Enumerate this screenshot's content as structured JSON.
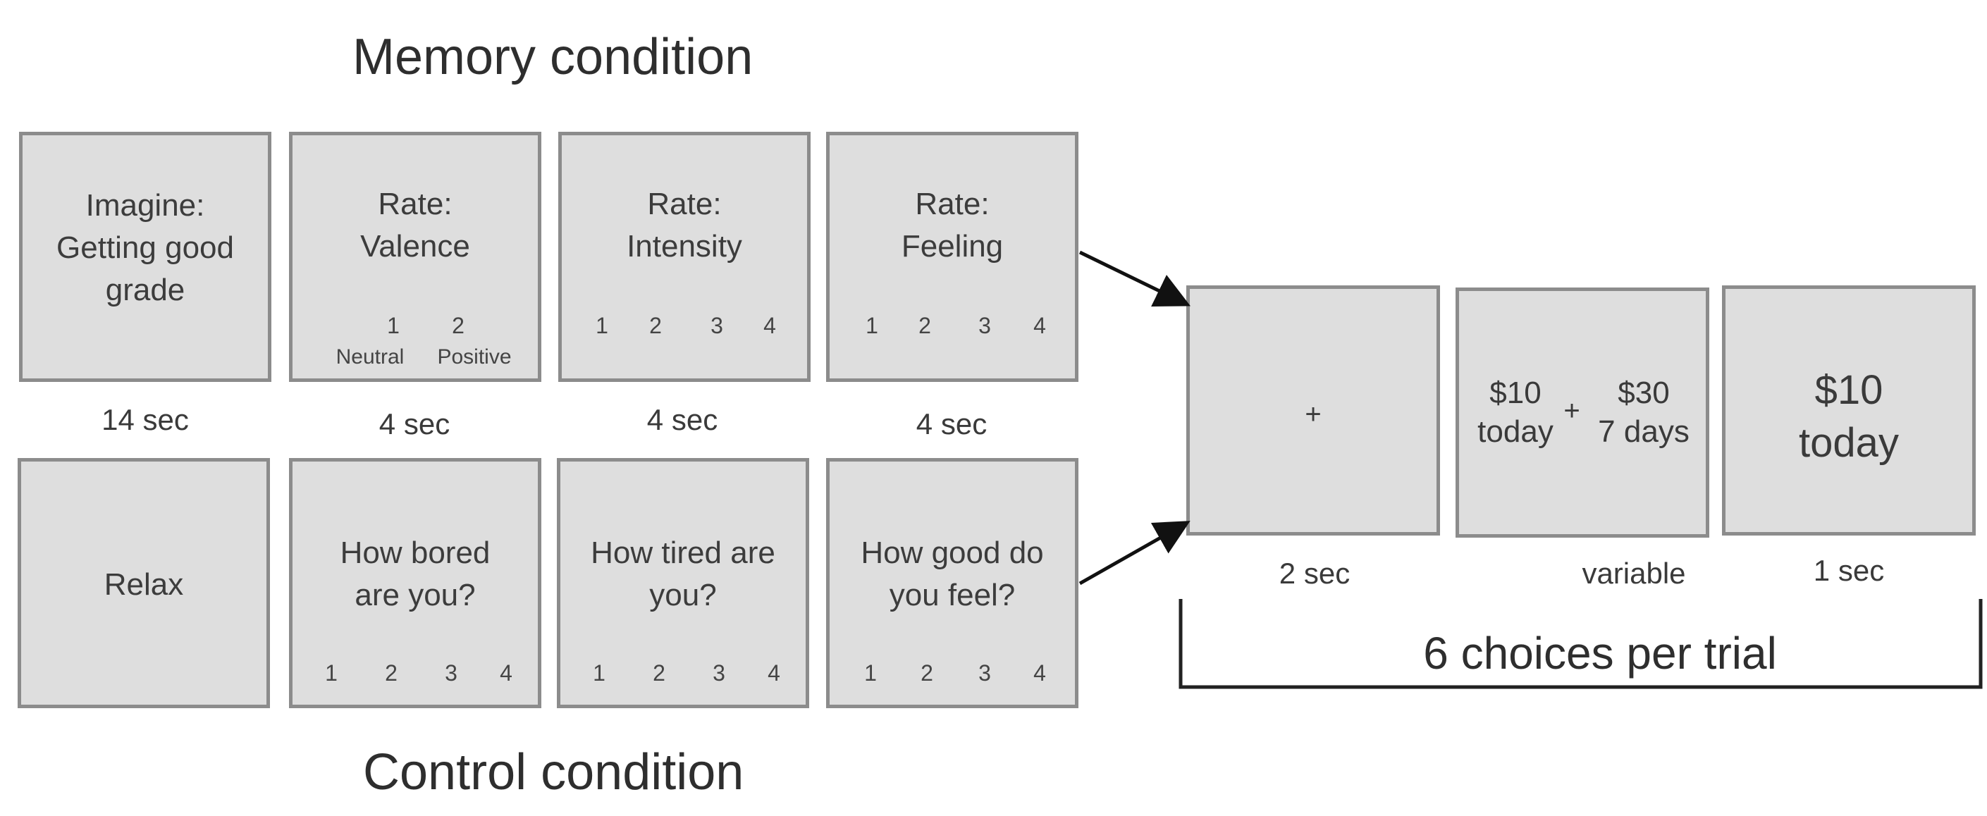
{
  "memory_title": "Memory condition",
  "control_title": "Control condition",
  "memory": {
    "imagine": [
      "Imagine:",
      "Getting good",
      "grade"
    ],
    "valence": {
      "text": [
        "Rate:",
        "Valence"
      ],
      "nums": [
        "1",
        "2"
      ],
      "labels": [
        "Neutral",
        "Positive"
      ]
    },
    "intensity": {
      "text": [
        "Rate:",
        "Intensity"
      ],
      "nums": [
        "1",
        "2",
        "3",
        "4"
      ]
    },
    "feeling": {
      "text": [
        "Rate:",
        "Feeling"
      ],
      "nums": [
        "1",
        "2",
        "3",
        "4"
      ]
    }
  },
  "durations": [
    "14 sec",
    "4 sec",
    "4 sec",
    "4 sec"
  ],
  "control": {
    "relax": "Relax",
    "bored": {
      "text": [
        "How bored",
        "are you?"
      ],
      "nums": [
        "1",
        "2",
        "3",
        "4"
      ]
    },
    "tired": {
      "text": [
        "How tired are",
        "you?"
      ],
      "nums": [
        "1",
        "2",
        "3",
        "4"
      ]
    },
    "good": {
      "text": [
        "How good do",
        "you feel?"
      ],
      "nums": [
        "1",
        "2",
        "3",
        "4"
      ]
    }
  },
  "choice": {
    "fixation": "+",
    "left_amount": "$10",
    "left_delay": "today",
    "plus": "+",
    "right_amount": "$30",
    "right_delay": "7 days",
    "result_amount": "$10",
    "result_delay": "today",
    "durations": [
      "2 sec",
      "variable",
      "1 sec"
    ],
    "bracket_label": "6 choices per trial"
  }
}
